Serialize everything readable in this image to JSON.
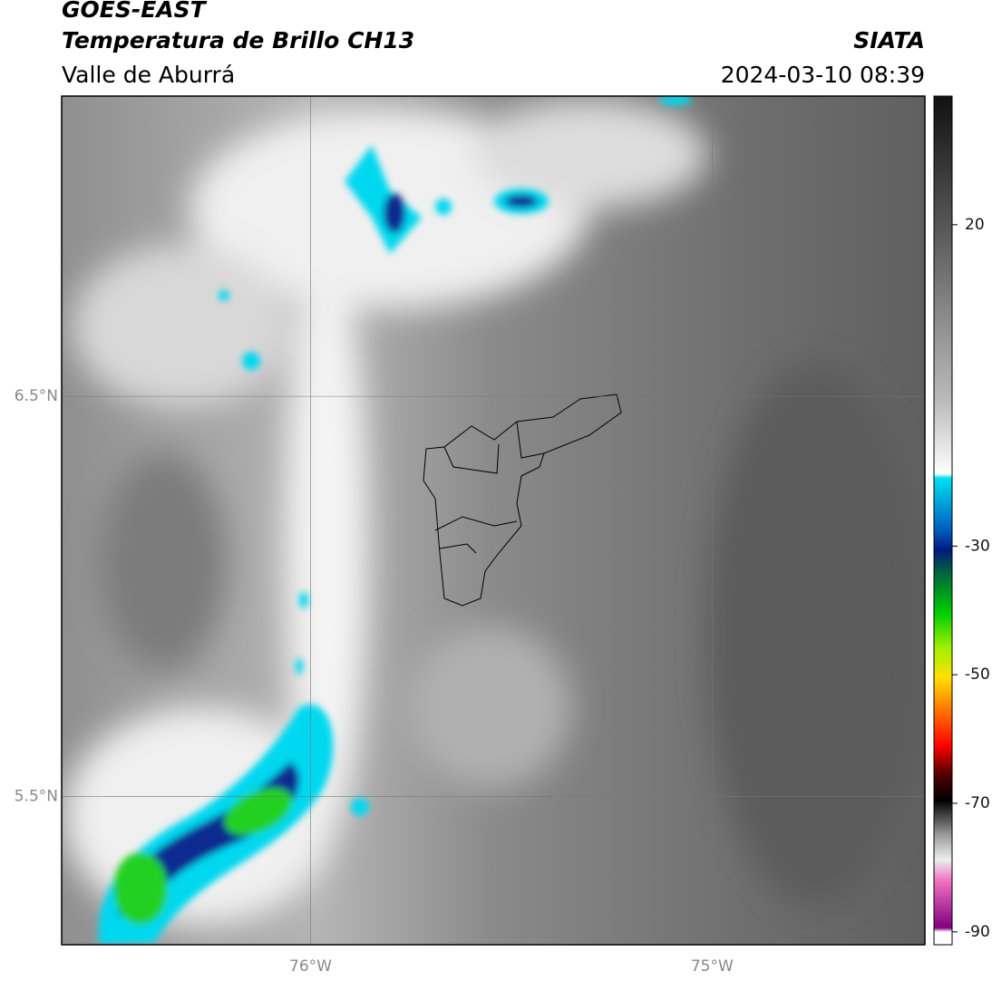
{
  "header": {
    "title": "GOES-EAST",
    "subtitle": "Temperatura de Brillo CH13",
    "source": "SIATA",
    "region": "Valle de Aburrá",
    "datetime": "2024-03-10 08:39"
  },
  "map": {
    "xlim": [
      -76.62,
      -74.47
    ],
    "ylim": [
      5.13,
      7.25
    ],
    "xticks": [
      {
        "value": -76,
        "label": "76°W"
      },
      {
        "value": -75,
        "label": "75°W"
      }
    ],
    "yticks": [
      {
        "value": 6.5,
        "label": "6.5°N"
      },
      {
        "value": 5.5,
        "label": "5.5°N"
      }
    ]
  },
  "colorbar": {
    "lim": [
      -92,
      40
    ],
    "ticks": [
      20,
      -30,
      -50,
      -70,
      -90
    ]
  }
}
